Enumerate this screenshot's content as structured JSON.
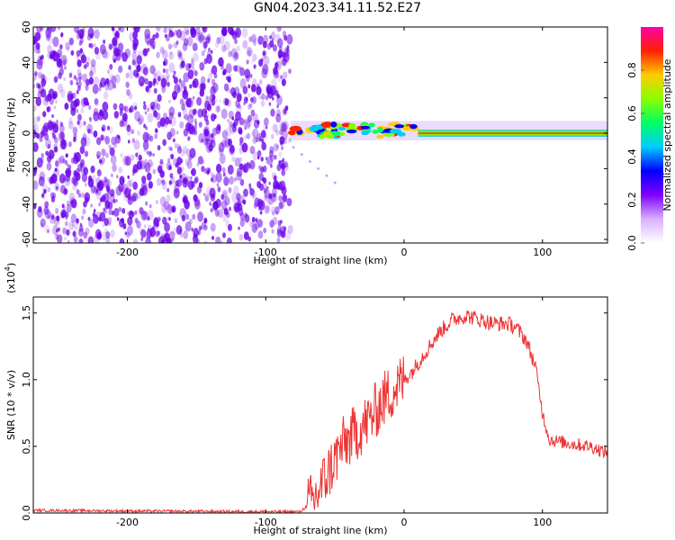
{
  "title": "GN04.2023.341.11.52.E27",
  "colors": {
    "spectrogram_noise": "#6a00e8",
    "snr_line": "#ee3333",
    "colorbar_stops": [
      "#ffffff",
      "#d8b0ff",
      "#8000ff",
      "#0000ff",
      "#00ccff",
      "#00ff66",
      "#88ff00",
      "#ffcc00",
      "#ff2000",
      "#ff00aa"
    ]
  },
  "chart_data": [
    {
      "type": "heatmap",
      "title": "",
      "xlabel": "Height of straight line (km)",
      "ylabel": "Frequency (Hz)",
      "xlim": [
        -268,
        147
      ],
      "ylim": [
        -62,
        60
      ],
      "x_ticks": [
        -200,
        -100,
        0,
        100
      ],
      "y_ticks": [
        -60,
        -40,
        -20,
        0,
        20,
        40,
        60
      ],
      "grid": false,
      "regions": [
        {
          "name": "",
          "x_range": [
            -268,
            -82
          ],
          "y_range": [
            -62,
            60
          ],
          "level": 0.3
        },
        {
          "name": "",
          "x_range": [
            -82,
            10
          ],
          "y_range": [
            -2,
            5
          ],
          "level": 0.55
        },
        {
          "name": "",
          "x_range": [
            10,
            147
          ],
          "y_range": [
            -2,
            2
          ],
          "level": 0.95
        }
      ],
      "colorbar": {
        "label": "Normalized spectral amplitude",
        "range": [
          0,
          1
        ],
        "ticks": [
          0.0,
          0.2,
          0.4,
          0.6,
          0.8
        ]
      }
    },
    {
      "type": "line",
      "title": "",
      "xlabel": "Height of straight line (km)",
      "ylabel": "SNR (10 * v/v)",
      "y_multiplier": "(x10",
      "y_multiplier_exp": "4",
      "xlim": [
        -268,
        147
      ],
      "ylim": [
        0,
        1.62
      ],
      "x_ticks": [
        -200,
        -100,
        0,
        100
      ],
      "y_ticks": [
        0.0,
        0.5,
        1.0,
        1.5
      ],
      "grid": false,
      "series": [
        {
          "name": "",
          "x": [
            -268,
            -200,
            -100,
            -75,
            -65,
            -55,
            -45,
            -35,
            -25,
            -15,
            -5,
            5,
            15,
            25,
            35,
            45,
            55,
            65,
            75,
            80,
            88,
            95,
            100,
            105,
            120,
            135,
            147
          ],
          "y": [
            0.02,
            0.015,
            0.01,
            0.01,
            0.1,
            0.3,
            0.5,
            0.6,
            0.7,
            0.85,
            0.95,
            1.05,
            1.2,
            1.35,
            1.45,
            1.48,
            1.45,
            1.42,
            1.42,
            1.4,
            1.3,
            1.1,
            0.75,
            0.55,
            0.52,
            0.5,
            0.45
          ]
        }
      ]
    }
  ]
}
